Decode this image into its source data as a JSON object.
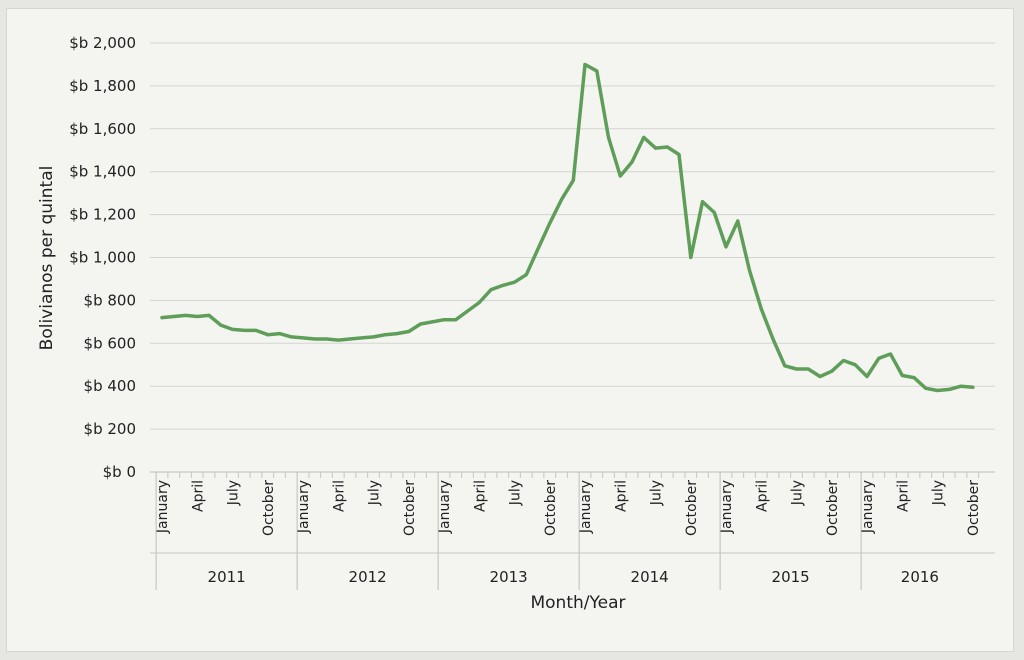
{
  "chart_data": {
    "type": "line",
    "title": "",
    "xlabel": "Month/Year",
    "ylabel": "Bolivianos per quintal",
    "ylim": [
      0,
      2000
    ],
    "grid": true,
    "yticks": [
      "$b 0",
      "$b 200",
      "$b 400",
      "$b 600",
      "$b 800",
      "$b 1,000",
      "$b 1,200",
      "$b 1,400",
      "$b 1,600",
      "$b 1,800",
      "$b 2,000"
    ],
    "years": [
      "2011",
      "2012",
      "2013",
      "2014",
      "2015",
      "2016"
    ],
    "month_tick_labels": [
      "January",
      "April",
      "July",
      "October"
    ],
    "x": [
      "2011-01",
      "2011-02",
      "2011-03",
      "2011-04",
      "2011-05",
      "2011-06",
      "2011-07",
      "2011-08",
      "2011-09",
      "2011-10",
      "2011-11",
      "2011-12",
      "2012-01",
      "2012-02",
      "2012-03",
      "2012-04",
      "2012-05",
      "2012-06",
      "2012-07",
      "2012-08",
      "2012-09",
      "2012-10",
      "2012-11",
      "2012-12",
      "2013-01",
      "2013-02",
      "2013-03",
      "2013-04",
      "2013-05",
      "2013-06",
      "2013-07",
      "2013-08",
      "2013-09",
      "2013-10",
      "2013-11",
      "2013-12",
      "2014-01",
      "2014-02",
      "2014-03",
      "2014-04",
      "2014-05",
      "2014-06",
      "2014-07",
      "2014-08",
      "2014-09",
      "2014-10",
      "2014-11",
      "2014-12",
      "2015-01",
      "2015-02",
      "2015-03",
      "2015-04",
      "2015-05",
      "2015-06",
      "2015-07",
      "2015-08",
      "2015-09",
      "2015-10",
      "2015-11",
      "2015-12",
      "2016-01",
      "2016-02",
      "2016-03",
      "2016-04",
      "2016-05",
      "2016-06",
      "2016-07",
      "2016-08",
      "2016-09",
      "2016-10"
    ],
    "series": [
      {
        "color": "#5e9e59",
        "values": [
          720,
          725,
          730,
          725,
          730,
          685,
          665,
          660,
          660,
          640,
          645,
          630,
          625,
          620,
          620,
          615,
          620,
          625,
          630,
          640,
          645,
          655,
          690,
          700,
          710,
          710,
          750,
          790,
          850,
          870,
          885,
          920,
          1040,
          1160,
          1270,
          1360,
          1900,
          1870,
          1560,
          1380,
          1445,
          1560,
          1510,
          1515,
          1480,
          1000,
          1260,
          1210,
          1050,
          1170,
          940,
          760,
          620,
          495,
          480,
          480,
          445,
          470,
          520,
          500,
          445,
          530,
          550,
          450,
          440,
          390,
          380,
          385,
          400,
          395
        ]
      }
    ]
  }
}
